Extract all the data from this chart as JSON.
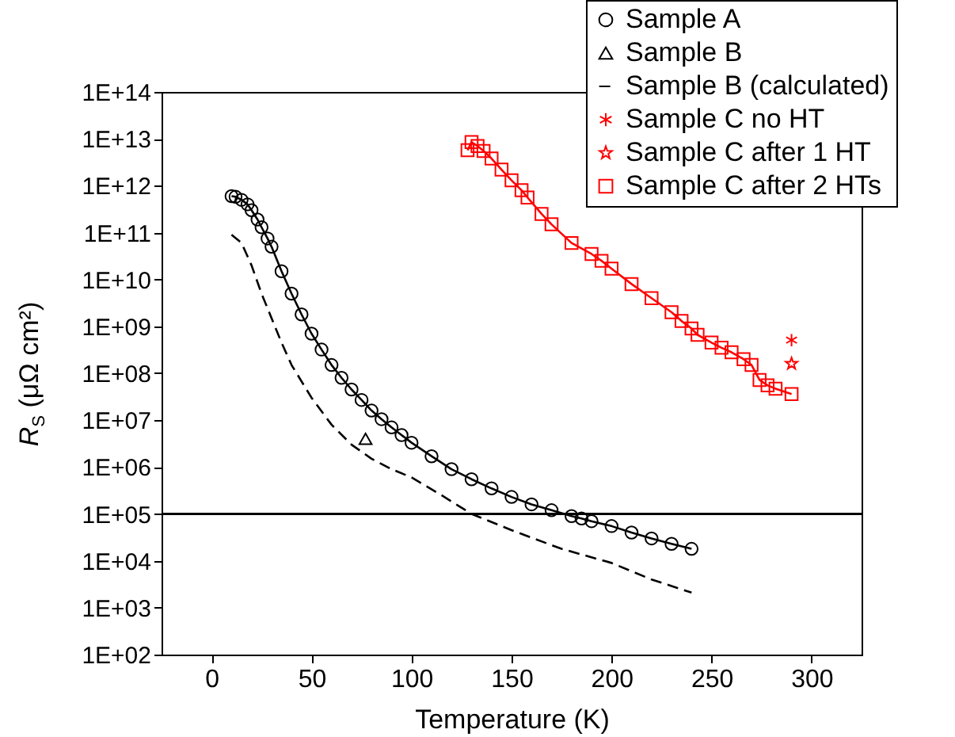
{
  "chart_data": {
    "type": "line",
    "xlabel": "Temperature (K)",
    "ylabel": "R$_{S}$ (μΩ cm²)",
    "log": "y",
    "legend": "top right",
    "xlim": [
      -25,
      325
    ],
    "xticks": [
      0,
      50,
      100,
      150,
      200,
      250,
      300
    ],
    "ylim": [
      100,
      100000000000000
    ],
    "yticks": [
      {
        "value": 100,
        "label": "1E+02"
      },
      {
        "value": 1000,
        "label": "1E+03"
      },
      {
        "value": 10000,
        "label": "1E+04"
      },
      {
        "value": 100000,
        "label": "1E+05"
      },
      {
        "value": 1000000,
        "label": "1E+06"
      },
      {
        "value": 10000000,
        "label": "1E+07"
      },
      {
        "value": 100000000,
        "label": "1E+08"
      },
      {
        "value": 1000000000,
        "label": "1E+09"
      },
      {
        "value": 10000000000,
        "label": "1E+10"
      },
      {
        "value": 100000000000,
        "label": "1E+11"
      },
      {
        "value": 1000000000000,
        "label": "1E+12"
      },
      {
        "value": 10000000000000,
        "label": "1E+13"
      },
      {
        "value": 100000000000000,
        "label": "1E+14"
      }
    ],
    "ref_lines": [
      {
        "axis": "y",
        "value": 100000,
        "color": "#000000",
        "line_style": "solid"
      }
    ],
    "series": [
      {
        "name": "Sample A",
        "marker": "circle",
        "color": "#000000",
        "x": [
          10,
          12,
          15,
          18,
          20,
          23,
          25,
          28,
          30,
          35,
          40,
          45,
          50,
          55,
          60,
          65,
          70,
          75,
          80,
          85,
          90,
          95,
          100,
          110,
          120,
          130,
          140,
          150,
          160,
          170,
          180,
          185,
          190,
          200,
          210,
          220,
          230,
          240
        ],
        "values": [
          600000000000,
          580000000000,
          500000000000,
          400000000000,
          300000000000,
          190000000000,
          130000000000,
          75000000000,
          50000000000,
          15000000000,
          5000000000,
          1800000000,
          700000000,
          320000000,
          150000000,
          80000000,
          45000000,
          27000000,
          16000000,
          10500000,
          7000000,
          4800000,
          3300000,
          1700000,
          900000,
          550000,
          350000,
          230000,
          160000,
          120000,
          90000,
          80000,
          70000,
          55000,
          40000,
          30000,
          23000,
          18000
        ]
      },
      {
        "name": "Sample B",
        "type": "scatter",
        "marker": "triangle",
        "color": "#000000",
        "x": [
          77
        ],
        "values": [
          4000000
        ]
      },
      {
        "name": "Sample B (calculated)",
        "marker": "none",
        "line_style": "dashed",
        "color": "#000000",
        "x": [
          10,
          15,
          20,
          25,
          30,
          35,
          40,
          50,
          60,
          70,
          80,
          90,
          100,
          115,
          130,
          150,
          175,
          200,
          220,
          240
        ],
        "values": [
          90000000000,
          60000000000,
          20000000000,
          5000000000,
          1500000000,
          450000000,
          150000000,
          30000000,
          8000000,
          3000000,
          1500000,
          900000,
          600000,
          250000,
          100000,
          45000,
          18000,
          9000,
          4000,
          2100
        ]
      },
      {
        "name": "Sample C no HT",
        "type": "scatter",
        "marker": "cross",
        "color": "#ff0000",
        "x": [
          290
        ],
        "values": [
          510000000
        ]
      },
      {
        "name": "Sample C after 1 HT",
        "type": "scatter",
        "marker": "star",
        "color": "#ff0000",
        "x": [
          290
        ],
        "values": [
          160000000
        ]
      },
      {
        "name": "Sample C after 2 HTs",
        "marker": "square",
        "color": "#ff0000",
        "x": [
          128,
          130,
          133,
          136,
          140,
          145,
          150,
          155,
          158,
          165,
          170,
          180,
          190,
          195,
          200,
          210,
          220,
          230,
          235,
          240,
          243,
          250,
          255,
          260,
          266,
          270,
          274,
          278,
          282,
          290
        ],
        "values": [
          5700000000000,
          8500000000000,
          7000000000000,
          5500000000000,
          3800000000000,
          2200000000000,
          1300000000000,
          800000000000,
          560000000000,
          250000000000,
          150000000000,
          60000000000,
          35000000000,
          25000000000,
          17000000000,
          8000000000,
          4000000000,
          2000000000,
          1300000000,
          900000000,
          660000000,
          450000000,
          350000000,
          280000000,
          200000000,
          150000000,
          72000000,
          55000000,
          47000000,
          36000000
        ]
      }
    ]
  }
}
